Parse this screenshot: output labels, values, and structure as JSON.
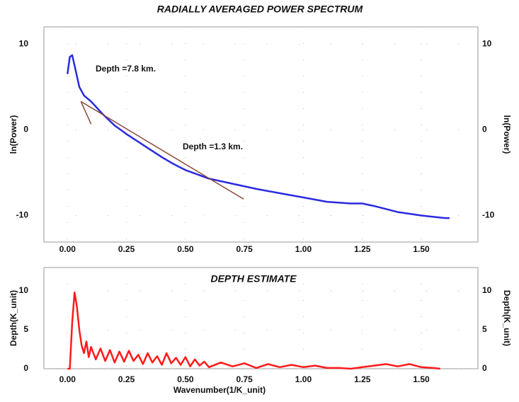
{
  "chart_data": [
    {
      "type": "line",
      "title": "RADIALLY AVERAGED POWER SPECTRUM",
      "ylabel": "ln(Power)",
      "y2label": "ln(Power)",
      "xlim": [
        -0.1,
        1.74
      ],
      "xticks": [
        {
          "value": 0,
          "label": "0.00"
        },
        {
          "value": 0.25,
          "label": "0.25"
        },
        {
          "value": 0.5,
          "label": "0.50"
        },
        {
          "value": 0.75,
          "label": "0.75"
        },
        {
          "value": 1,
          "label": "1.00"
        },
        {
          "value": 1.25,
          "label": "1.25"
        },
        {
          "value": 1.5,
          "label": "1.50"
        }
      ],
      "ylim": [
        -13.1,
        12
      ],
      "yticks": [
        -10,
        0,
        10
      ],
      "y2lim": [
        -13.1,
        12
      ],
      "y2ticks": [
        -10,
        0,
        10
      ],
      "grid": true,
      "series": [
        {
          "color": "#2a2ae0",
          "x": [
            0,
            0.01,
            0.02,
            0.03,
            0.05,
            0.07,
            0.1,
            0.15,
            0.2,
            0.25,
            0.3,
            0.35,
            0.4,
            0.45,
            0.5,
            0.55,
            0.6,
            0.7,
            0.8,
            0.9,
            1.0,
            1.1,
            1.2,
            1.25,
            1.3,
            1.4,
            1.5,
            1.6,
            1.62
          ],
          "values": [
            6.5,
            8.5,
            8.7,
            7.5,
            5.0,
            4.0,
            3.3,
            1.8,
            0.5,
            -0.5,
            -1.4,
            -2.3,
            -3.2,
            -4.0,
            -4.7,
            -5.2,
            -5.7,
            -6.3,
            -6.9,
            -7.4,
            -7.9,
            -8.4,
            -8.6,
            -8.6,
            -8.9,
            -9.6,
            -10.0,
            -10.3,
            -10.3
          ]
        },
        {
          "color": "#8b4a3a",
          "x": [
            0.057,
            0.1
          ],
          "values": [
            3.3,
            0.66
          ]
        },
        {
          "color": "#8b4a3a",
          "x": [
            0.057,
            0.747
          ],
          "values": [
            3.3,
            -8.1
          ]
        }
      ],
      "annotations": [
        "Depth =7.8 km.",
        "Depth =1.3 km."
      ]
    },
    {
      "type": "line",
      "title": "DEPTH ESTIMATE",
      "xlabel": "Wavenumber(1/K_unit)",
      "ylabel": "Depth(K_unit)",
      "y2label": "Depth(K_unit)",
      "xlim": [
        -0.1,
        1.74
      ],
      "xticks": [
        {
          "value": 0,
          "label": "0.00"
        },
        {
          "value": 0.25,
          "label": "0.25"
        },
        {
          "value": 0.5,
          "label": "0.50"
        },
        {
          "value": 0.75,
          "label": "0.75"
        },
        {
          "value": 1,
          "label": "1.00"
        },
        {
          "value": 1.25,
          "label": "1.25"
        },
        {
          "value": 1.5,
          "label": "1.50"
        }
      ],
      "ylim": [
        0,
        13
      ],
      "yticks": [
        0,
        5,
        10
      ],
      "y2lim": [
        0,
        13
      ],
      "y2ticks": [
        0,
        5,
        10
      ],
      "grid": true,
      "series": [
        {
          "color": "#ff1a1a",
          "x": [
            0,
            0.01,
            0.02,
            0.03,
            0.04,
            0.05,
            0.06,
            0.07,
            0.08,
            0.09,
            0.1,
            0.12,
            0.14,
            0.16,
            0.18,
            0.2,
            0.22,
            0.24,
            0.26,
            0.28,
            0.3,
            0.32,
            0.34,
            0.36,
            0.38,
            0.4,
            0.42,
            0.44,
            0.46,
            0.48,
            0.5,
            0.52,
            0.54,
            0.56,
            0.58,
            0.6,
            0.65,
            0.7,
            0.75,
            0.8,
            0.85,
            0.9,
            0.95,
            1.0,
            1.05,
            1.1,
            1.15,
            1.2,
            1.25,
            1.3,
            1.35,
            1.4,
            1.45,
            1.5,
            1.55,
            1.58
          ],
          "values": [
            0,
            0,
            6,
            9.8,
            8,
            5,
            3,
            2,
            3.5,
            1.5,
            2.8,
            1.2,
            2.6,
            1.0,
            2.4,
            0.8,
            2.2,
            0.9,
            2.3,
            1.0,
            1.8,
            0.6,
            2.0,
            0.8,
            1.6,
            0.5,
            2.0,
            0.7,
            1.4,
            0.5,
            1.5,
            0.3,
            1.2,
            0.4,
            0.9,
            0.2,
            0.8,
            0.3,
            0.7,
            0.1,
            0.6,
            0.2,
            0.5,
            0.2,
            0.4,
            0.1,
            0.1,
            0,
            0.2,
            0.4,
            0.6,
            0.3,
            0.6,
            0.2,
            0.1,
            0
          ]
        }
      ]
    }
  ]
}
